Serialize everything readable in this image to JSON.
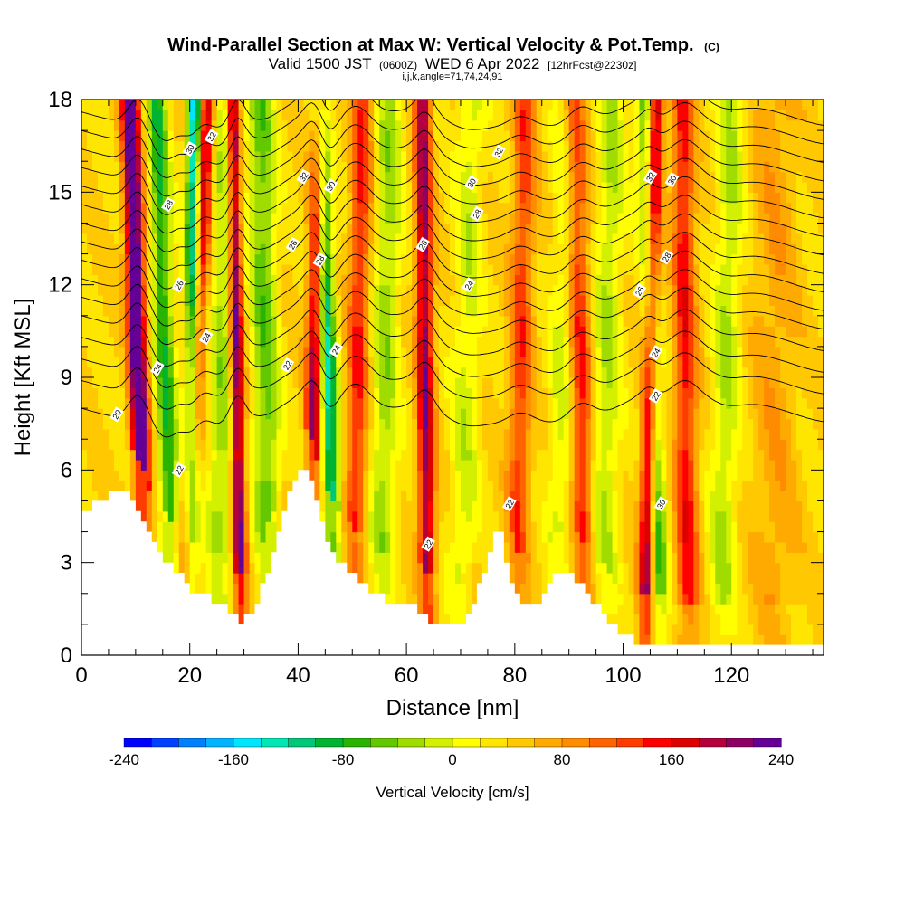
{
  "header": {
    "title_main": "Wind-Parallel Section at Max W: Vertical Velocity & Pot.Temp.",
    "title_mark": "(C)",
    "valid_prefix": "Valid 1500 JST",
    "valid_utc": "(0600Z)",
    "valid_date": "WED 6 Apr 2022",
    "forecast_info": "[12hrFcst@2230z]",
    "grid_info": "i,j,k,angle=71,74,24,91"
  },
  "chart_data": {
    "type": "heatmap",
    "xlabel": "Distance [nm]",
    "ylabel": "Height [Kft MSL]",
    "xlim": [
      0,
      137
    ],
    "ylim": [
      0,
      18
    ],
    "x_ticks": [
      0,
      20,
      40,
      60,
      80,
      100,
      120
    ],
    "y_ticks": [
      0,
      3,
      6,
      9,
      12,
      15,
      18
    ],
    "x_tick_labels": [
      "0",
      "20",
      "40",
      "60",
      "80",
      "100",
      "120"
    ],
    "y_tick_labels": [
      "0",
      "3",
      "6",
      "9",
      "12",
      "15",
      "18"
    ],
    "colorbar": {
      "label": "Vertical Velocity [cm/s]",
      "min": -240,
      "max": 240,
      "tick_values": [
        -240,
        -160,
        -80,
        0,
        80,
        160,
        240
      ],
      "tick_labels": [
        "-240",
        "-160",
        "-80",
        "0",
        "80",
        "160",
        "240"
      ],
      "colors": [
        "#0000ff",
        "#0040ff",
        "#0080ff",
        "#00b4ff",
        "#00e6ff",
        "#00e6b4",
        "#00c878",
        "#00b432",
        "#28b400",
        "#64c800",
        "#a0dc00",
        "#d2f000",
        "#ffff00",
        "#ffe600",
        "#ffc800",
        "#ffaa00",
        "#ff8c00",
        "#ff6400",
        "#ff3c00",
        "#ff0000",
        "#dc0000",
        "#b4003c",
        "#8c0064",
        "#640096"
      ]
    },
    "terrain": [
      [
        0,
        4.5
      ],
      [
        2,
        4.8
      ],
      [
        4,
        5.1
      ],
      [
        6,
        5.2
      ],
      [
        8,
        5.4
      ],
      [
        10,
        5.0
      ],
      [
        12,
        4.2
      ],
      [
        14,
        3.4
      ],
      [
        16,
        3.0
      ],
      [
        18,
        2.7
      ],
      [
        20,
        2.2
      ],
      [
        22,
        2.0
      ],
      [
        24,
        1.9
      ],
      [
        26,
        1.6
      ],
      [
        28,
        1.2
      ],
      [
        30,
        1.1
      ],
      [
        32,
        1.5
      ],
      [
        34,
        2.4
      ],
      [
        36,
        3.6
      ],
      [
        38,
        5.0
      ],
      [
        40,
        6.0
      ],
      [
        42,
        5.8
      ],
      [
        44,
        4.6
      ],
      [
        46,
        3.5
      ],
      [
        48,
        3.0
      ],
      [
        50,
        2.6
      ],
      [
        52,
        2.4
      ],
      [
        54,
        2.0
      ],
      [
        56,
        1.8
      ],
      [
        58,
        1.6
      ],
      [
        60,
        1.6
      ],
      [
        62,
        1.5
      ],
      [
        64,
        1.2
      ],
      [
        66,
        1.0
      ],
      [
        68,
        1.0
      ],
      [
        70,
        0.9
      ],
      [
        72,
        1.5
      ],
      [
        74,
        2.5
      ],
      [
        76,
        3.6
      ],
      [
        77,
        4.5
      ],
      [
        78,
        3.5
      ],
      [
        80,
        2.0
      ],
      [
        82,
        1.6
      ],
      [
        84,
        1.6
      ],
      [
        86,
        2.2
      ],
      [
        88,
        2.6
      ],
      [
        90,
        2.6
      ],
      [
        92,
        2.4
      ],
      [
        94,
        1.9
      ],
      [
        96,
        1.5
      ],
      [
        98,
        1.0
      ],
      [
        100,
        0.7
      ],
      [
        102,
        0.5
      ],
      [
        104,
        0.4
      ],
      [
        106,
        0.4
      ],
      [
        110,
        0.3
      ],
      [
        120,
        0.3
      ],
      [
        130,
        0.3
      ],
      [
        137,
        0.3
      ]
    ],
    "w_features": [
      {
        "x0": 12,
        "x1": 9,
        "amp": 230,
        "w": 1.6
      },
      {
        "x0": 17,
        "x1": 14,
        "amp": -120,
        "w": 1.8
      },
      {
        "x0": 20,
        "x1": 21,
        "amp": -230,
        "w": 1.4
      },
      {
        "x0": 19,
        "x1": 23,
        "amp": 180,
        "w": 1.6
      },
      {
        "x0": 25,
        "x1": 27,
        "amp": -70,
        "w": 2.5
      },
      {
        "x0": 29.5,
        "x1": 28,
        "amp": 200,
        "w": 1.2
      },
      {
        "x0": 35,
        "x1": 33,
        "amp": -90,
        "w": 2.5
      },
      {
        "x0": 42,
        "x1": 44,
        "amp": 170,
        "w": 1.5
      },
      {
        "x0": 47,
        "x1": 44,
        "amp": -170,
        "w": 1.6
      },
      {
        "x0": 50,
        "x1": 52,
        "amp": 100,
        "w": 2.0
      },
      {
        "x0": 55,
        "x1": 57,
        "amp": -70,
        "w": 2.5
      },
      {
        "x0": 64,
        "x1": 63,
        "amp": 170,
        "w": 1.5
      },
      {
        "x0": 70,
        "x1": 72,
        "amp": -50,
        "w": 2.5
      },
      {
        "x0": 80,
        "x1": 82,
        "amp": 90,
        "w": 2.0
      },
      {
        "x0": 88,
        "x1": 90,
        "amp": -50,
        "w": 2.5
      },
      {
        "x0": 93,
        "x1": 91,
        "amp": 110,
        "w": 2.0
      },
      {
        "x0": 96,
        "x1": 98,
        "amp": -60,
        "w": 2.5
      },
      {
        "x0": 104,
        "x1": 106,
        "amp": 170,
        "w": 1.4
      },
      {
        "x0": 107,
        "x1": 104,
        "amp": -110,
        "w": 1.6
      },
      {
        "x0": 112,
        "x1": 111,
        "amp": 110,
        "w": 2.0
      },
      {
        "x0": 118,
        "x1": 120,
        "amp": -60,
        "w": 2.5
      },
      {
        "x0": 128,
        "x1": 128,
        "amp": 35,
        "w": 4.0
      }
    ],
    "theta_contours": [
      {
        "level": 20,
        "base": 8.0
      },
      {
        "level": 21,
        "base": 8.9
      },
      {
        "level": 22,
        "base": 9.6
      },
      {
        "level": 23,
        "base": 10.3
      },
      {
        "level": 24,
        "base": 11.0
      },
      {
        "level": 25,
        "base": 11.6
      },
      {
        "level": 26,
        "base": 12.2
      },
      {
        "level": 27,
        "base": 12.8
      },
      {
        "level": 28,
        "base": 13.4
      },
      {
        "level": 29,
        "base": 14.0
      },
      {
        "level": 30,
        "base": 14.6
      },
      {
        "level": 31,
        "base": 15.2
      },
      {
        "level": 32,
        "base": 15.8
      },
      {
        "level": 33,
        "base": 16.4
      },
      {
        "level": 34,
        "base": 17.0
      },
      {
        "level": 35,
        "base": 17.6
      }
    ],
    "contour_labels": [
      {
        "text": "20",
        "x": 6.5,
        "y": 7.8
      },
      {
        "text": "24",
        "x": 14.0,
        "y": 9.3
      },
      {
        "text": "22",
        "x": 18.0,
        "y": 6.0
      },
      {
        "text": "26",
        "x": 18.0,
        "y": 12.0
      },
      {
        "text": "24",
        "x": 23.0,
        "y": 10.3
      },
      {
        "text": "28",
        "x": 16.0,
        "y": 14.6
      },
      {
        "text": "30",
        "x": 20.0,
        "y": 16.4
      },
      {
        "text": "32",
        "x": 24.0,
        "y": 16.8
      },
      {
        "text": "22",
        "x": 38.0,
        "y": 9.4
      },
      {
        "text": "26",
        "x": 39.0,
        "y": 13.3
      },
      {
        "text": "28",
        "x": 44.0,
        "y": 12.8
      },
      {
        "text": "32",
        "x": 41.0,
        "y": 15.5
      },
      {
        "text": "30",
        "x": 46.0,
        "y": 15.2
      },
      {
        "text": "24",
        "x": 47.0,
        "y": 9.9
      },
      {
        "text": "26",
        "x": 63.0,
        "y": 13.3
      },
      {
        "text": "22",
        "x": 64.0,
        "y": 3.6
      },
      {
        "text": "24",
        "x": 71.5,
        "y": 12.0
      },
      {
        "text": "28",
        "x": 73.0,
        "y": 14.3
      },
      {
        "text": "30",
        "x": 72.0,
        "y": 15.3
      },
      {
        "text": "32",
        "x": 77.0,
        "y": 16.3
      },
      {
        "text": "22",
        "x": 79.0,
        "y": 4.9
      },
      {
        "text": "26",
        "x": 103.0,
        "y": 11.8
      },
      {
        "text": "24",
        "x": 106.0,
        "y": 9.8
      },
      {
        "text": "22",
        "x": 106.0,
        "y": 8.4
      },
      {
        "text": "30",
        "x": 107.0,
        "y": 4.9
      },
      {
        "text": "28",
        "x": 108.0,
        "y": 12.9
      },
      {
        "text": "32",
        "x": 105.0,
        "y": 15.5
      },
      {
        "text": "30",
        "x": 109.0,
        "y": 15.4
      }
    ]
  }
}
